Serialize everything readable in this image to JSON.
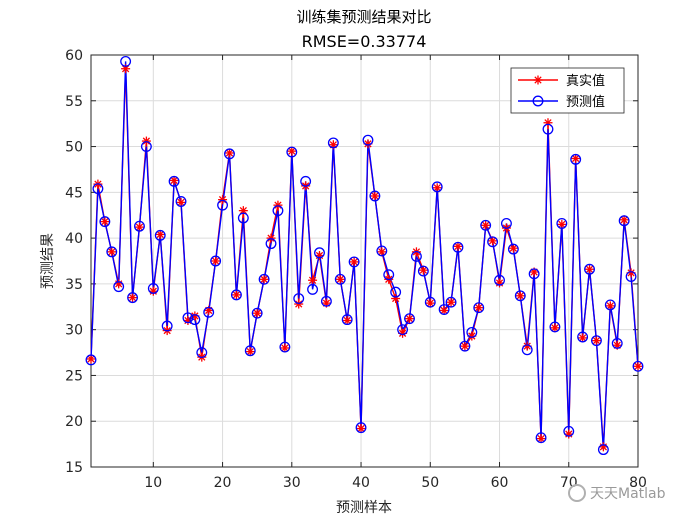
{
  "chart_data": {
    "type": "line",
    "title": "训练集预测结果对比",
    "subtitle": "RMSE=0.33774",
    "xlabel": "预测样本",
    "ylabel": "预测结果",
    "xlim": [
      1,
      80
    ],
    "ylim": [
      15,
      60
    ],
    "xticks": [
      10,
      20,
      30,
      40,
      50,
      60,
      70,
      80
    ],
    "yticks": [
      15,
      20,
      25,
      30,
      35,
      40,
      45,
      50,
      55,
      60
    ],
    "grid": true,
    "legend_position": "top-right",
    "x": [
      1,
      2,
      3,
      4,
      5,
      6,
      7,
      8,
      9,
      10,
      11,
      12,
      13,
      14,
      15,
      16,
      17,
      18,
      19,
      20,
      21,
      22,
      23,
      24,
      25,
      26,
      27,
      28,
      29,
      30,
      31,
      32,
      33,
      34,
      35,
      36,
      37,
      38,
      39,
      40,
      41,
      42,
      43,
      44,
      45,
      46,
      47,
      48,
      49,
      50,
      51,
      52,
      53,
      54,
      55,
      56,
      57,
      58,
      59,
      60,
      61,
      62,
      63,
      64,
      65,
      66,
      67,
      68,
      69,
      70,
      71,
      72,
      73,
      74,
      75,
      76,
      77,
      78,
      79,
      80
    ],
    "series": [
      {
        "name": "真实值",
        "color": "#ff0000",
        "marker": "asterisk",
        "values": [
          26.8,
          45.9,
          41.8,
          38.5,
          35.0,
          58.5,
          33.5,
          41.2,
          50.6,
          34.2,
          40.4,
          29.9,
          46.3,
          43.9,
          31.0,
          31.5,
          27.0,
          32.1,
          37.5,
          44.2,
          49.3,
          33.8,
          43.0,
          27.6,
          31.8,
          35.5,
          40.0,
          43.6,
          28.0,
          49.5,
          32.8,
          45.7,
          35.4,
          38.1,
          32.9,
          50.2,
          35.5,
          31.0,
          37.4,
          19.2,
          50.3,
          44.6,
          38.5,
          35.5,
          33.4,
          29.6,
          31.2,
          38.5,
          36.5,
          32.9,
          45.5,
          32.1,
          33.0,
          39.1,
          28.2,
          29.3,
          32.4,
          41.4,
          39.7,
          35.1,
          41.1,
          38.9,
          33.7,
          28.2,
          36.3,
          18.1,
          52.6,
          30.2,
          41.5,
          18.6,
          48.7,
          29.1,
          36.6,
          28.8,
          17.2,
          32.6,
          28.3,
          42.0,
          36.2,
          26.0
        ]
      },
      {
        "name": "预测值",
        "color": "#0000ff",
        "marker": "circle",
        "values": [
          26.7,
          45.4,
          41.8,
          38.5,
          34.7,
          59.3,
          33.5,
          41.3,
          50.0,
          34.5,
          40.3,
          30.4,
          46.2,
          44.0,
          31.3,
          31.1,
          27.5,
          31.9,
          37.5,
          43.6,
          49.2,
          33.8,
          42.2,
          27.7,
          31.8,
          35.5,
          39.4,
          43.0,
          28.1,
          49.4,
          33.4,
          46.2,
          34.4,
          38.4,
          33.1,
          50.4,
          35.5,
          31.1,
          37.4,
          19.3,
          50.7,
          44.6,
          38.6,
          36.0,
          34.1,
          30.0,
          31.2,
          38.0,
          36.4,
          33.0,
          45.6,
          32.2,
          33.0,
          39.0,
          28.2,
          29.7,
          32.4,
          41.4,
          39.6,
          35.4,
          41.6,
          38.8,
          33.7,
          27.8,
          36.1,
          18.2,
          51.9,
          30.3,
          41.6,
          18.9,
          48.6,
          29.2,
          36.6,
          28.8,
          16.9,
          32.7,
          28.5,
          41.9,
          35.8,
          26.0
        ]
      }
    ]
  },
  "watermark": {
    "text": "天天Matlab"
  }
}
